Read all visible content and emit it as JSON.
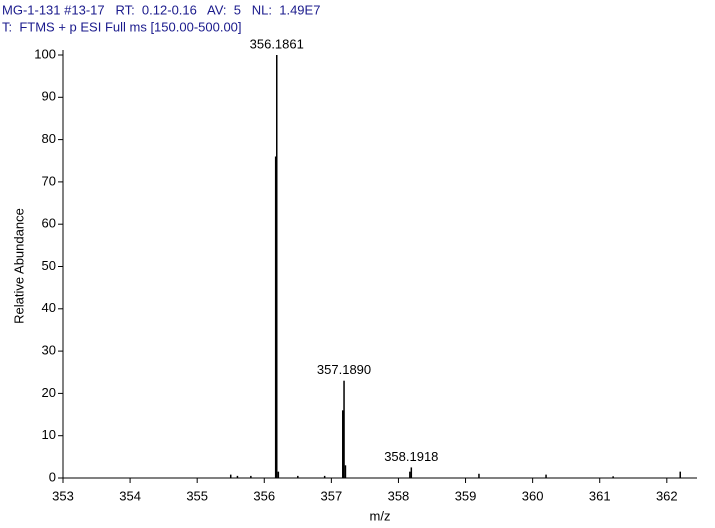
{
  "chart_data": {
    "type": "stick",
    "title": "MG-1-131 #13-17   RT:  0.12-0.16   AV:  5   NL:  1.49E7",
    "subtitle": "T:  FTMS + p ESI Full ms [150.00-500.00]",
    "x_label": "m/z",
    "y_label": "Relative Abundance",
    "x": [
      355.5,
      355.6,
      355.8,
      356.17,
      356.1861,
      356.21,
      356.5,
      356.9,
      357.17,
      357.189,
      357.21,
      358.17,
      358.1918,
      359.2,
      360.2,
      361.2,
      362.2
    ],
    "values": [
      0.8,
      0.5,
      0.5,
      76,
      100,
      1.5,
      0.5,
      0.5,
      16,
      23,
      3,
      1.5,
      2.5,
      1,
      0.8,
      0.4,
      1.5
    ],
    "color": "#000000",
    "annotations": [
      {
        "x": 356.1861,
        "y": 100,
        "text": "356.1861"
      },
      {
        "x": 357.189,
        "y": 23,
        "text": "357.1890"
      },
      {
        "x": 358.1918,
        "y": 2.5,
        "text": "358.1918"
      }
    ],
    "xlim": [
      353,
      362.45
    ],
    "xticks": [
      353,
      354,
      355,
      356,
      357,
      358,
      359,
      360,
      361,
      362
    ],
    "ylim": [
      0,
      100
    ],
    "yticks": [
      0,
      10,
      20,
      30,
      40,
      50,
      60,
      70,
      80,
      90,
      100
    ]
  }
}
